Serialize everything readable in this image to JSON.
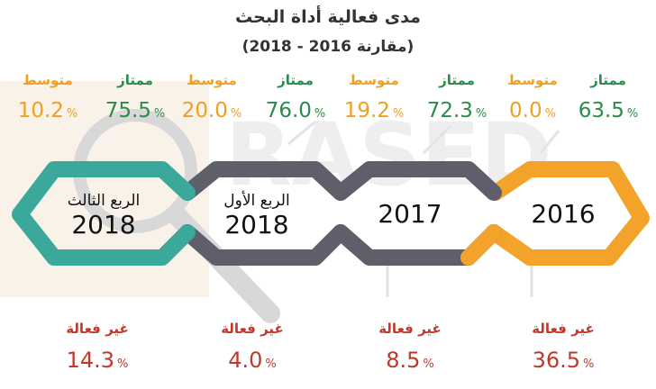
{
  "title": "مدى فعالية أداة البحث",
  "subtitle": "(مقارنة 2016 - 2018)",
  "colors": {
    "excellent": "#2a8c4a",
    "average": "#f0a020",
    "ineffective": "#c0392b",
    "q3_2018": "#3aa99b",
    "q1_2018": "#5f5f6b",
    "y2017": "#5f5f6b",
    "y2016": "#f4a32a"
  },
  "chart_data": {
    "type": "table",
    "title": "مدى فعالية أداة البحث",
    "subtitle": "(مقارنة 2016 - 2018)",
    "unit": "%",
    "periods": [
      {
        "label": "الربع الثالث",
        "year": "2018",
        "excellent": 75.5,
        "average": 10.2,
        "ineffective": 14.3
      },
      {
        "label": "الربع الأول",
        "year": "2018",
        "excellent": 76.0,
        "average": 20.0,
        "ineffective": 4.0
      },
      {
        "label": "",
        "year": "2017",
        "excellent": 72.3,
        "average": 19.2,
        "ineffective": 8.5
      },
      {
        "label": "",
        "year": "2016",
        "excellent": 63.5,
        "average": 0.0,
        "ineffective": 36.5
      }
    ],
    "category_labels": {
      "excellent": "ممتاز",
      "average": "متوسط",
      "ineffective": "غير فعالة"
    }
  },
  "display": {
    "q3_2018": {
      "excellent_label": "ممتاز",
      "excellent_value": "75.5",
      "average_label": "متوسط",
      "average_value": "10.2",
      "ineffective_label": "غير فعالة",
      "ineffective_value": "14.3",
      "period_label": "الربع الثالث",
      "year": "2018"
    },
    "q1_2018": {
      "excellent_label": "ممتاز",
      "excellent_value": "76.0",
      "average_label": "متوسط",
      "average_value": "20.0",
      "ineffective_label": "غير فعالة",
      "ineffective_value": "4.0",
      "period_label": "الربع الأول",
      "year": "2018"
    },
    "y2017": {
      "excellent_label": "ممتاز",
      "excellent_value": "72.3",
      "average_label": "متوسط",
      "average_value": "19.2",
      "ineffective_label": "غير فعالة",
      "ineffective_value": "8.5",
      "year": "2017"
    },
    "y2016": {
      "excellent_label": "ممتاز",
      "excellent_value": "63.5",
      "average_label": "متوسط",
      "average_value": "0.0",
      "ineffective_label": "غير فعالة",
      "ineffective_value": "36.5",
      "year": "2016"
    },
    "percent_sign": "%"
  },
  "watermark": {
    "text": "RASED",
    "icon": "magnifier-icon"
  }
}
